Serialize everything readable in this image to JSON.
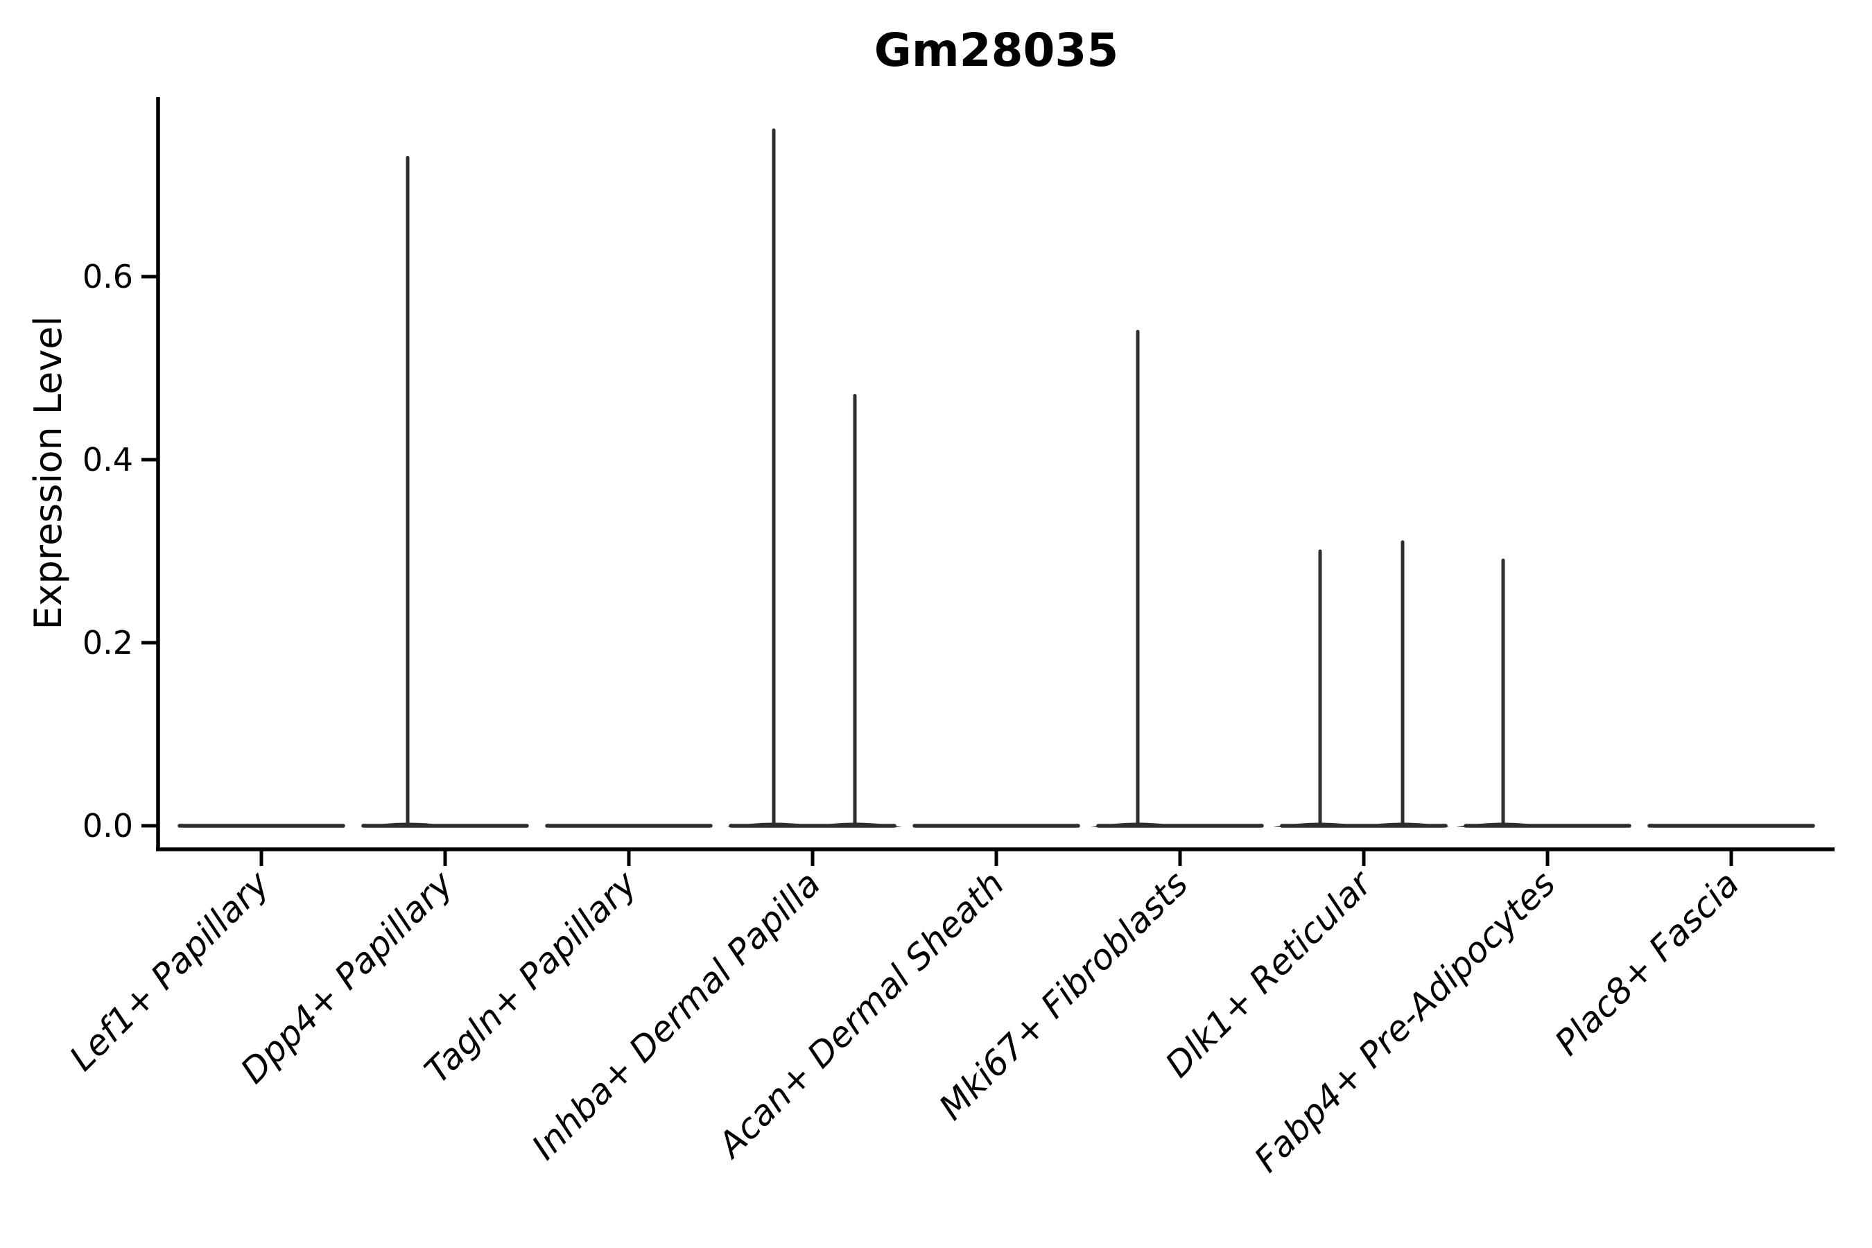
{
  "figure": {
    "kind": "violin-plot-figure",
    "background": "#ffffff"
  },
  "chart_data": {
    "type": "violin",
    "title": "Gm28035",
    "xlabel": "",
    "ylabel": "Expression Level",
    "ylim": [
      -0.026,
      0.796
    ],
    "grid": false,
    "legend": "none",
    "yticks": [
      {
        "label": "0.0",
        "value": 0.0
      },
      {
        "label": "0.2",
        "value": 0.2
      },
      {
        "label": "0.4",
        "value": 0.4
      },
      {
        "label": "0.6",
        "value": 0.6
      }
    ],
    "categories": [
      "Lef1+ Papillary",
      "Dpp4+ Papillary",
      "Tagln+ Papillary",
      "Inhba+ Dermal Papilla",
      "Acan+ Dermal Sheath",
      "Mki67+ Fibroblasts",
      "Dlk1+ Reticular",
      "Fabp4+ Pre-Adipocytes",
      "Plac8+ Fascia"
    ],
    "violins": [
      {
        "category": "Lef1+ Papillary",
        "body_at_zero": true,
        "spikes": []
      },
      {
        "category": "Dpp4+ Papillary",
        "body_at_zero": true,
        "spikes": [
          {
            "x_offset": -54,
            "value": 0.73
          }
        ]
      },
      {
        "category": "Tagln+ Papillary",
        "body_at_zero": true,
        "spikes": []
      },
      {
        "category": "Inhba+ Dermal Papilla",
        "body_at_zero": true,
        "spikes": [
          {
            "x_offset": -56,
            "value": 0.76
          },
          {
            "x_offset": 61,
            "value": 0.47
          }
        ]
      },
      {
        "category": "Acan+ Dermal Sheath",
        "body_at_zero": true,
        "spikes": []
      },
      {
        "category": "Mki67+ Fibroblasts",
        "body_at_zero": true,
        "spikes": [
          {
            "x_offset": -61,
            "value": 0.54
          }
        ]
      },
      {
        "category": "Dlk1+ Reticular",
        "body_at_zero": true,
        "spikes": [
          {
            "x_offset": -63,
            "value": 0.3
          },
          {
            "x_offset": 56,
            "value": 0.31
          }
        ]
      },
      {
        "category": "Fabp4+ Pre-Adipocytes",
        "body_at_zero": true,
        "spikes": [
          {
            "x_offset": -64,
            "value": 0.29
          }
        ]
      },
      {
        "category": "Plac8+ Fascia",
        "body_at_zero": true,
        "spikes": []
      }
    ],
    "colors": {
      "violin": "#2e2e2e",
      "axis": "#000000",
      "text": "#000000",
      "background": "#ffffff"
    }
  }
}
